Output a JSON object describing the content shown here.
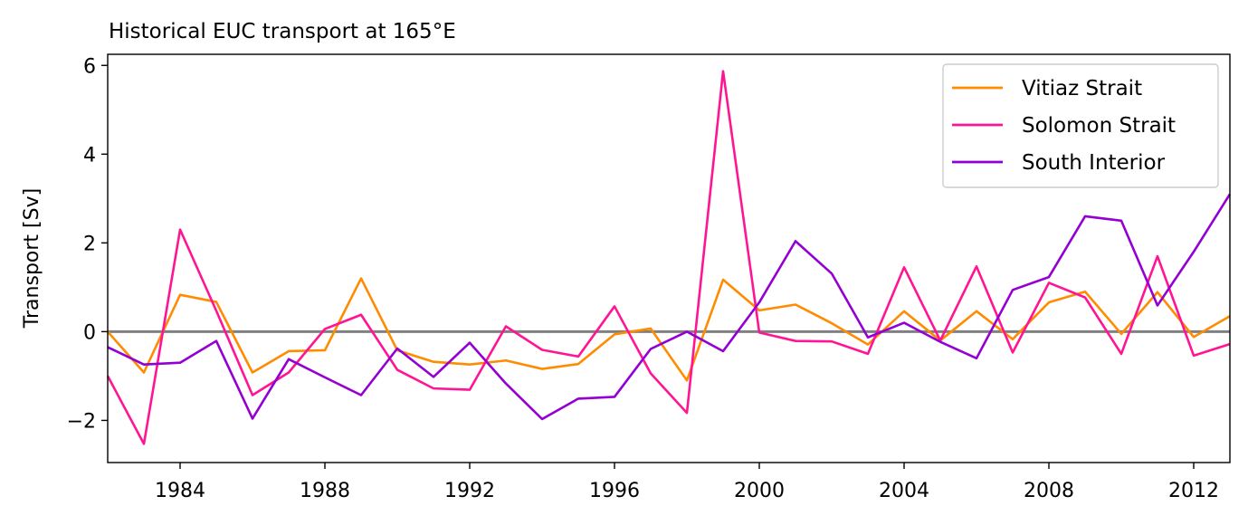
{
  "chart_data": {
    "type": "line",
    "title": "Historical EUC transport at 165°E",
    "xlabel": "",
    "ylabel": "Transport [Sv]",
    "x": [
      1982,
      1983,
      1984,
      1985,
      1986,
      1987,
      1988,
      1989,
      1990,
      1991,
      1992,
      1993,
      1994,
      1995,
      1996,
      1997,
      1998,
      1999,
      2000,
      2001,
      2002,
      2003,
      2004,
      2005,
      2006,
      2007,
      2008,
      2009,
      2010,
      2011,
      2012,
      2013
    ],
    "xlim": [
      1982,
      2013
    ],
    "ylim": [
      -2.95,
      6.25
    ],
    "xticks": [
      1984,
      1988,
      1992,
      1996,
      2000,
      2004,
      2008,
      2012
    ],
    "yticks": [
      -2,
      0,
      2,
      4,
      6
    ],
    "ytick_labels": [
      "−2",
      "0",
      "2",
      "4",
      "6"
    ],
    "zero_line": {
      "value": 0,
      "color": "#808080"
    },
    "grid": false,
    "legend_position": "top-right",
    "series": [
      {
        "name": "Vitiaz Strait",
        "color": "#ff8c00",
        "values": [
          0.0,
          -0.92,
          0.83,
          0.67,
          -0.92,
          -0.44,
          -0.42,
          1.2,
          -0.42,
          -0.68,
          -0.74,
          -0.65,
          -0.84,
          -0.73,
          -0.06,
          0.07,
          -1.1,
          1.17,
          0.48,
          0.61,
          0.19,
          -0.29,
          0.46,
          -0.2,
          0.46,
          -0.17,
          0.66,
          0.9,
          -0.05,
          0.89,
          -0.12,
          0.35
        ]
      },
      {
        "name": "Solomon Strait",
        "color": "#ff1493",
        "values": [
          -1.0,
          -2.53,
          2.3,
          0.47,
          -1.43,
          -0.92,
          0.06,
          0.38,
          -0.86,
          -1.28,
          -1.31,
          0.12,
          -0.41,
          -0.56,
          0.57,
          -0.94,
          -1.83,
          5.87,
          -0.02,
          -0.21,
          -0.22,
          -0.5,
          1.45,
          -0.2,
          1.47,
          -0.47,
          1.1,
          0.77,
          -0.5,
          1.7,
          -0.54,
          -0.28
        ]
      },
      {
        "name": "South Interior",
        "color": "#9400d3",
        "values": [
          -0.35,
          -0.74,
          -0.7,
          -0.21,
          -1.96,
          -0.62,
          -1.03,
          -1.43,
          -0.38,
          -1.02,
          -0.25,
          -1.17,
          -1.97,
          -1.51,
          -1.47,
          -0.39,
          0.0,
          -0.44,
          0.66,
          2.04,
          1.31,
          -0.13,
          0.2,
          -0.23,
          -0.6,
          0.94,
          1.23,
          2.6,
          2.5,
          0.59,
          1.8,
          3.1
        ]
      }
    ]
  }
}
